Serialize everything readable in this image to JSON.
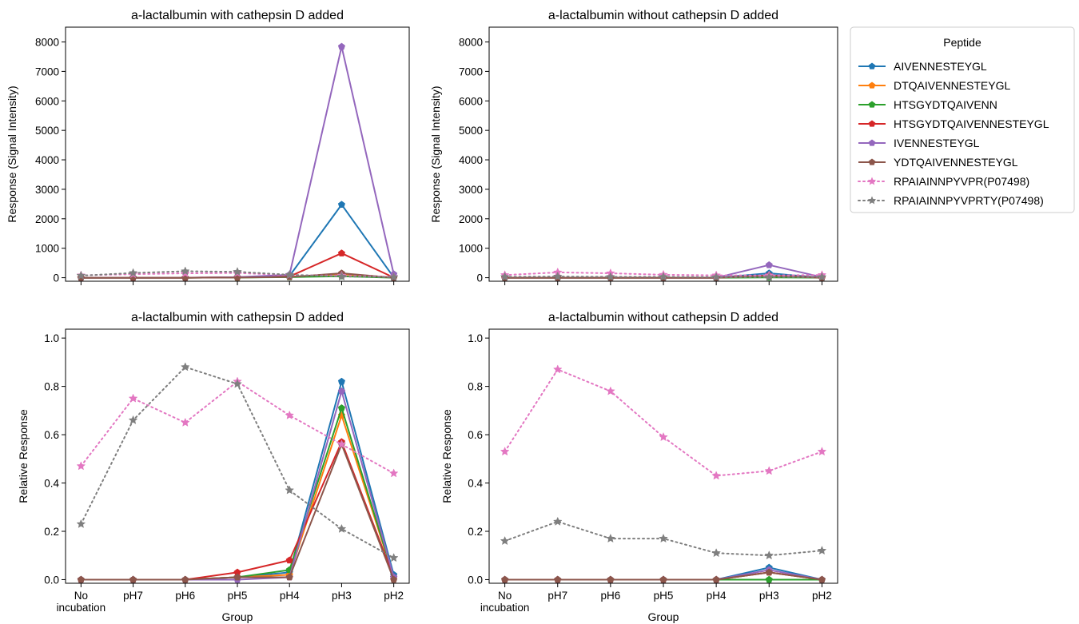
{
  "colors": {
    "AIVENNESTEYGL": "#1f77b4",
    "DTQAIVENNESTEYGL": "#ff7f0e",
    "HTSGYDTQAIVENN": "#2ca02c",
    "HTSGYDTQAIVENNESTEYGL": "#d62728",
    "IVENNESTEYGL": "#9467bd",
    "YDTQAIVENNESTEYGL": "#8c564b",
    "RPAIAINNPYVPR(P07498)": "#e377c2",
    "RPAIAINNPYVPRTY(P07498)": "#7f7f7f"
  },
  "legend": {
    "title": "Peptide",
    "placement": "right",
    "entries": [
      {
        "name": "AIVENNESTEYGL",
        "style": "solid",
        "marker": "pentagon"
      },
      {
        "name": "DTQAIVENNESTEYGL",
        "style": "solid",
        "marker": "pentagon"
      },
      {
        "name": "HTSGYDTQAIVENN",
        "style": "solid",
        "marker": "pentagon"
      },
      {
        "name": "HTSGYDTQAIVENNESTEYGL",
        "style": "solid",
        "marker": "pentagon"
      },
      {
        "name": "IVENNESTEYGL",
        "style": "solid",
        "marker": "pentagon"
      },
      {
        "name": "YDTQAIVENNESTEYGL",
        "style": "solid",
        "marker": "pentagon"
      },
      {
        "name": "RPAIAINNPYVPR(P07498)",
        "style": "dotted",
        "marker": "star"
      },
      {
        "name": "RPAIAINNPYVPRTY(P07498)",
        "style": "dotted",
        "marker": "star"
      }
    ]
  },
  "chart_data": [
    {
      "type": "line",
      "title": "a-lactalbumin with cathepsin D added",
      "xlabel": "",
      "ylabel": "Response (Signal Intensity)",
      "categories": [
        "No incubation",
        "pH7",
        "pH6",
        "pH5",
        "pH4",
        "pH3",
        "pH2"
      ],
      "show_xtick_labels": false,
      "ylim": [
        -120,
        8200
      ],
      "yticks": [
        0,
        1000,
        2000,
        3000,
        4000,
        5000,
        6000,
        7000,
        8000
      ],
      "grid": false,
      "series": [
        {
          "name": "AIVENNESTEYGL",
          "values": [
            0,
            0,
            0,
            10,
            60,
            2480,
            10
          ]
        },
        {
          "name": "DTQAIVENNESTEYGL",
          "values": [
            0,
            0,
            0,
            5,
            30,
            120,
            5
          ]
        },
        {
          "name": "HTSGYDTQAIVENN",
          "values": [
            0,
            0,
            0,
            5,
            20,
            50,
            0
          ]
        },
        {
          "name": "HTSGYDTQAIVENNESTEYGL",
          "values": [
            0,
            0,
            0,
            15,
            40,
            830,
            5
          ]
        },
        {
          "name": "IVENNESTEYGL",
          "values": [
            0,
            0,
            0,
            20,
            100,
            7840,
            120
          ]
        },
        {
          "name": "YDTQAIVENNESTEYGL",
          "values": [
            0,
            0,
            0,
            5,
            25,
            150,
            0
          ]
        },
        {
          "name": "RPAIAINNPYVPR(P07498)",
          "values": [
            80,
            120,
            150,
            160,
            90,
            70,
            30
          ]
        },
        {
          "name": "RPAIAINNPYVPRTY(P07498)",
          "values": [
            70,
            160,
            220,
            200,
            100,
            40,
            20
          ]
        }
      ]
    },
    {
      "type": "line",
      "title": "a-lactalbumin without cathepsin D added",
      "xlabel": "",
      "ylabel": "Response (Signal Intensity)",
      "categories": [
        "No incubation",
        "pH7",
        "pH6",
        "pH5",
        "pH4",
        "pH3",
        "pH2"
      ],
      "show_xtick_labels": false,
      "ylim": [
        -120,
        8200
      ],
      "yticks": [
        0,
        1000,
        2000,
        3000,
        4000,
        5000,
        6000,
        7000,
        8000
      ],
      "grid": false,
      "series": [
        {
          "name": "AIVENNESTEYGL",
          "values": [
            0,
            0,
            0,
            0,
            0,
            150,
            0
          ]
        },
        {
          "name": "DTQAIVENNESTEYGL",
          "values": [
            0,
            0,
            0,
            0,
            0,
            60,
            0
          ]
        },
        {
          "name": "HTSGYDTQAIVENN",
          "values": [
            0,
            0,
            0,
            0,
            0,
            10,
            0
          ]
        },
        {
          "name": "HTSGYDTQAIVENNESTEYGL",
          "values": [
            0,
            0,
            0,
            0,
            0,
            80,
            0
          ]
        },
        {
          "name": "IVENNESTEYGL",
          "values": [
            0,
            0,
            0,
            0,
            0,
            430,
            20
          ]
        },
        {
          "name": "YDTQAIVENNESTEYGL",
          "values": [
            0,
            0,
            0,
            0,
            0,
            70,
            0
          ]
        },
        {
          "name": "RPAIAINNPYVPR(P07498)",
          "values": [
            90,
            180,
            150,
            100,
            80,
            80,
            90
          ]
        },
        {
          "name": "RPAIAINNPYVPRTY(P07498)",
          "values": [
            30,
            40,
            30,
            30,
            20,
            20,
            25
          ]
        }
      ]
    },
    {
      "type": "line",
      "title": "a-lactalbumin with cathepsin D added",
      "xlabel": "Group",
      "ylabel": "Relative Response",
      "categories": [
        "No incubation",
        "pH7",
        "pH6",
        "pH5",
        "pH4",
        "pH3",
        "pH2"
      ],
      "show_xtick_labels": true,
      "ylim": [
        -0.015,
        1.0
      ],
      "yticks": [
        0.0,
        0.2,
        0.4,
        0.6,
        0.8,
        1.0
      ],
      "grid": false,
      "series": [
        {
          "name": "AIVENNESTEYGL",
          "values": [
            0,
            0,
            0,
            0.01,
            0.03,
            0.82,
            0.02
          ]
        },
        {
          "name": "DTQAIVENNESTEYGL",
          "values": [
            0,
            0,
            0,
            0.01,
            0.02,
            0.68,
            0.01
          ]
        },
        {
          "name": "HTSGYDTQAIVENN",
          "values": [
            0,
            0,
            0,
            0.01,
            0.04,
            0.71,
            0.01
          ]
        },
        {
          "name": "HTSGYDTQAIVENNESTEYGL",
          "values": [
            0,
            0,
            0,
            0.03,
            0.08,
            0.57,
            0.01
          ]
        },
        {
          "name": "IVENNESTEYGL",
          "values": [
            0,
            0,
            0,
            0.0,
            0.01,
            0.78,
            0.01
          ]
        },
        {
          "name": "YDTQAIVENNESTEYGL",
          "values": [
            0,
            0,
            0,
            0.01,
            0.01,
            0.56,
            0.0
          ]
        },
        {
          "name": "RPAIAINNPYVPR(P07498)",
          "values": [
            0.47,
            0.75,
            0.65,
            0.82,
            0.68,
            0.56,
            0.44
          ]
        },
        {
          "name": "RPAIAINNPYVPRTY(P07498)",
          "values": [
            0.23,
            0.66,
            0.88,
            0.81,
            0.37,
            0.21,
            0.09
          ]
        }
      ]
    },
    {
      "type": "line",
      "title": "a-lactalbumin without cathepsin D added",
      "xlabel": "Group",
      "ylabel": "Relative Response",
      "categories": [
        "No incubation",
        "pH7",
        "pH6",
        "pH5",
        "pH4",
        "pH3",
        "pH2"
      ],
      "show_xtick_labels": true,
      "ylim": [
        -0.015,
        1.0
      ],
      "yticks": [
        0.0,
        0.2,
        0.4,
        0.6,
        0.8,
        1.0
      ],
      "grid": false,
      "series": [
        {
          "name": "AIVENNESTEYGL",
          "values": [
            0,
            0,
            0,
            0,
            0,
            0.05,
            0
          ]
        },
        {
          "name": "DTQAIVENNESTEYGL",
          "values": [
            0,
            0,
            0,
            0,
            0,
            0.03,
            0
          ]
        },
        {
          "name": "HTSGYDTQAIVENN",
          "values": [
            0,
            0,
            0,
            0,
            0,
            0.0,
            0
          ]
        },
        {
          "name": "HTSGYDTQAIVENNESTEYGL",
          "values": [
            0,
            0,
            0,
            0,
            0,
            0.03,
            0
          ]
        },
        {
          "name": "IVENNESTEYGL",
          "values": [
            0,
            0,
            0,
            0,
            0,
            0.04,
            0
          ]
        },
        {
          "name": "YDTQAIVENNESTEYGL",
          "values": [
            0,
            0,
            0,
            0,
            0,
            0.03,
            0
          ]
        },
        {
          "name": "RPAIAINNPYVPR(P07498)",
          "values": [
            0.53,
            0.87,
            0.78,
            0.59,
            0.43,
            0.45,
            0.53
          ]
        },
        {
          "name": "RPAIAINNPYVPRTY(P07498)",
          "values": [
            0.16,
            0.24,
            0.17,
            0.17,
            0.11,
            0.1,
            0.12
          ]
        }
      ]
    }
  ]
}
